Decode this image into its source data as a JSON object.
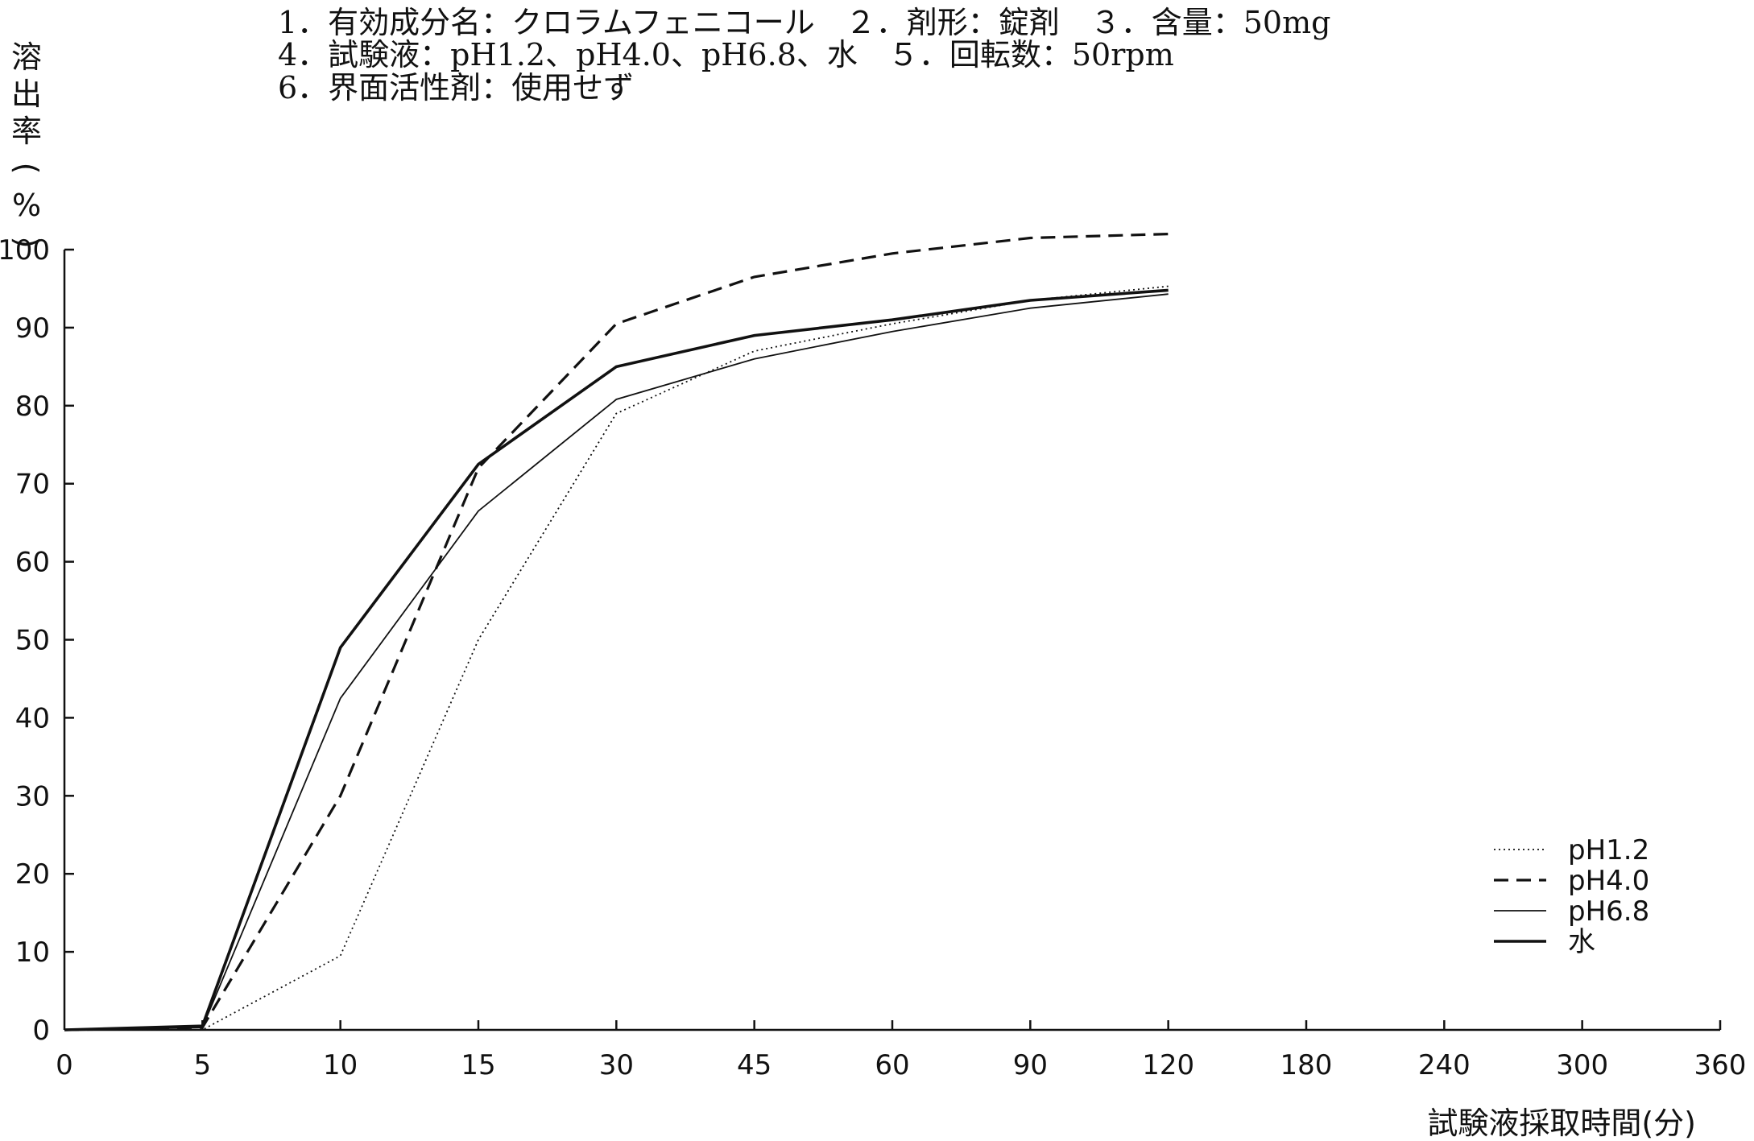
{
  "header": {
    "line1": "1．有効成分名：クロラムフェニコール　２．剤形：錠剤　３．含量：50mg",
    "line2": "4．試験液：pH1.2、pH4.0、pH6.8、水　５．回転数：50rpm",
    "line3": "6．界面活性剤：使用せず"
  },
  "chart_data": {
    "type": "line",
    "title": "",
    "xlabel": "試験液採取時間(分)",
    "ylabel": "溶出率(%)",
    "categories": [
      "0",
      "5",
      "10",
      "15",
      "30",
      "45",
      "60",
      "90",
      "120",
      "180",
      "240",
      "300",
      "360"
    ],
    "x_tick_labels": [
      "0",
      "5",
      "10",
      "15",
      "30",
      "45",
      "60",
      "90",
      "120",
      "180",
      "240",
      "300",
      "360"
    ],
    "y_ticks": [
      "0",
      "10",
      "20",
      "30",
      "40",
      "50",
      "60",
      "70",
      "80",
      "90",
      "100"
    ],
    "ylim": [
      0,
      100
    ],
    "grid": false,
    "legend_position": "bottom-right",
    "series": [
      {
        "name": "pH1.2",
        "style": "dotted",
        "x": [
          "0",
          "5",
          "10",
          "15",
          "30",
          "45",
          "60",
          "90",
          "120"
        ],
        "values": [
          0,
          0,
          9.5,
          50,
          79,
          87,
          90.5,
          93.5,
          95.3
        ]
      },
      {
        "name": "pH4.0",
        "style": "dashed",
        "x": [
          "0",
          "5",
          "10",
          "15",
          "30",
          "45",
          "60",
          "90",
          "120"
        ],
        "values": [
          0,
          0.3,
          30,
          72,
          90.5,
          96.5,
          99.5,
          101.5,
          102
        ]
      },
      {
        "name": "pH6.8",
        "style": "thin",
        "x": [
          "0",
          "5",
          "10",
          "15",
          "30",
          "45",
          "60",
          "90",
          "120"
        ],
        "values": [
          0,
          0.3,
          42.5,
          66.5,
          80.8,
          86,
          89.5,
          92.5,
          94.3
        ]
      },
      {
        "name": "水",
        "style": "solid",
        "x": [
          "0",
          "5",
          "10",
          "15",
          "30",
          "45",
          "60",
          "90",
          "120"
        ],
        "values": [
          0,
          0.5,
          49,
          72.5,
          85,
          89,
          91,
          93.5,
          94.8
        ]
      }
    ],
    "colors": {
      "line": "#111111",
      "axis": "#111111"
    }
  }
}
